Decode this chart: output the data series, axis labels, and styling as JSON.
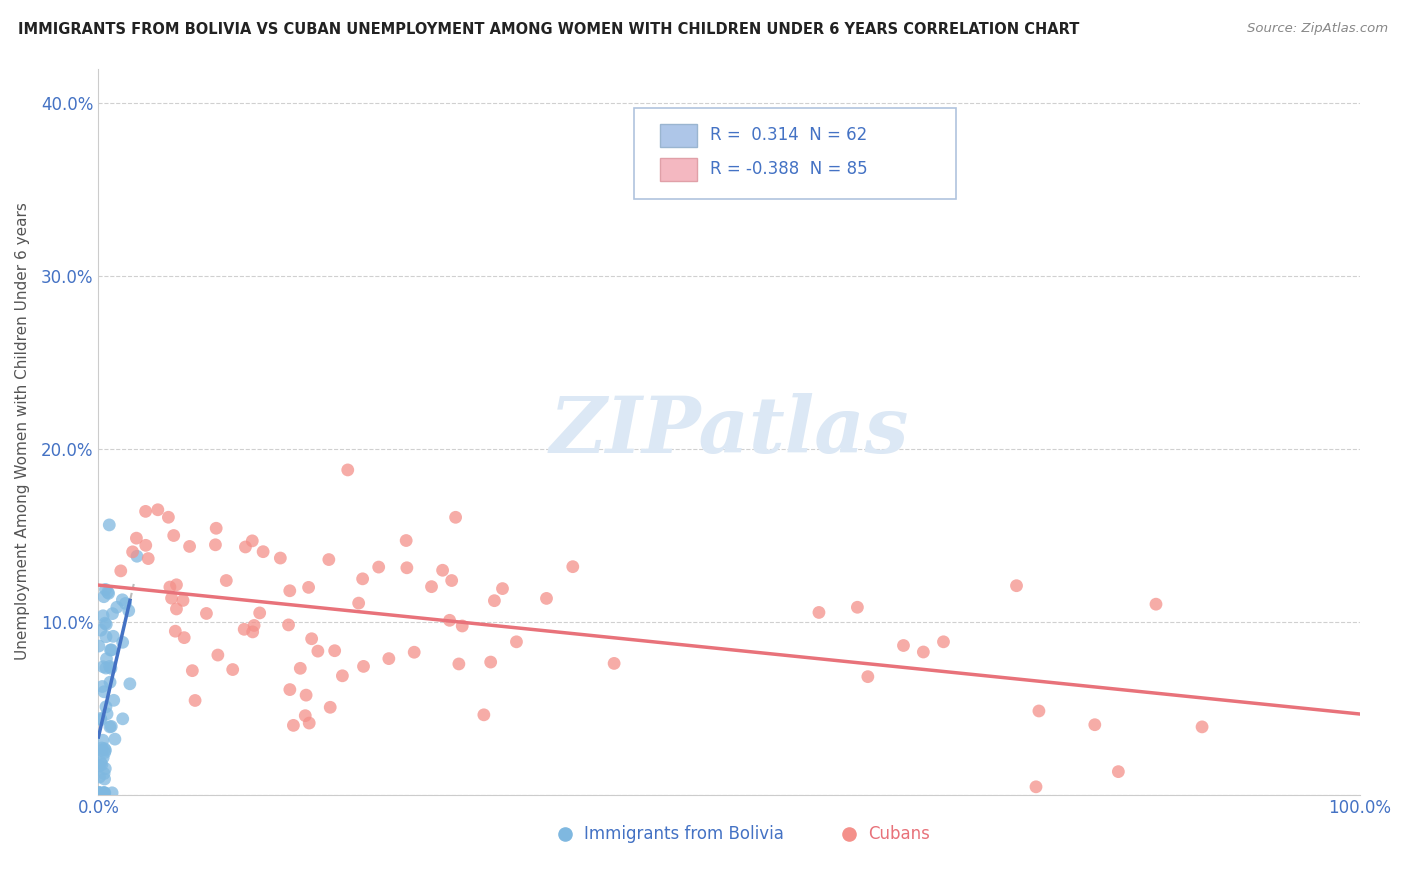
{
  "title": "IMMIGRANTS FROM BOLIVIA VS CUBAN UNEMPLOYMENT AMONG WOMEN WITH CHILDREN UNDER 6 YEARS CORRELATION CHART",
  "source": "Source: ZipAtlas.com",
  "ylabel": "Unemployment Among Women with Children Under 6 years",
  "y_ticks": [
    0.0,
    0.1,
    0.2,
    0.3,
    0.4
  ],
  "y_tick_labels": [
    "",
    "10.0%",
    "20.0%",
    "30.0%",
    "40.0%"
  ],
  "x_lim": [
    0.0,
    1.0
  ],
  "y_lim": [
    0.0,
    0.42
  ],
  "legend_color1": "#aec6e8",
  "legend_color2": "#f4b8c1",
  "series1_color": "#7fb8e0",
  "series2_color": "#f4908a",
  "line1_color": "#4472c4",
  "line2_color": "#e8727a",
  "dashed_color": "#bbbbbb",
  "watermark_color": "#dce8f5",
  "r1": 0.314,
  "n1": 62,
  "r2": -0.388,
  "n2": 85
}
